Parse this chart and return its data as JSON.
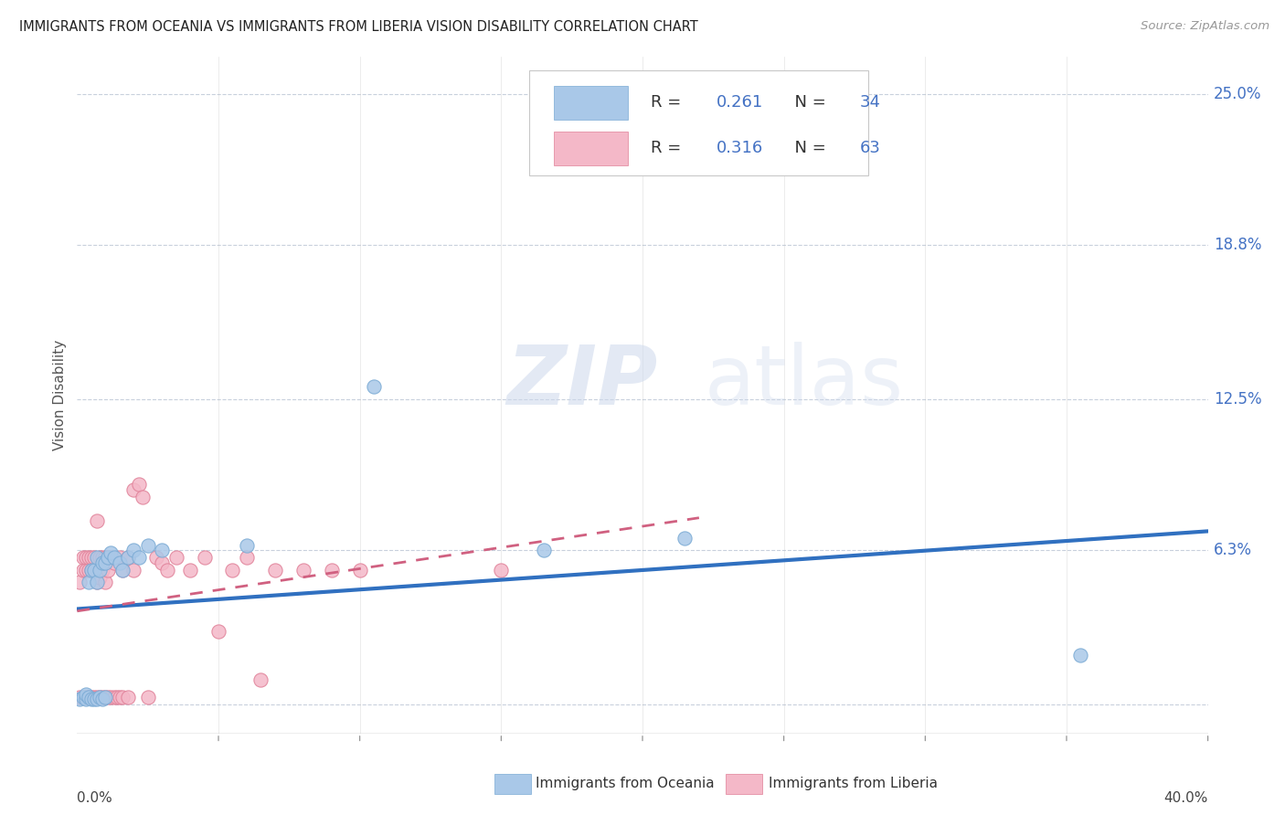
{
  "title": "IMMIGRANTS FROM OCEANIA VS IMMIGRANTS FROM LIBERIA VISION DISABILITY CORRELATION CHART",
  "source": "Source: ZipAtlas.com",
  "ylabel": "Vision Disability",
  "right_yticklabels": [
    "6.3%",
    "12.5%",
    "18.8%",
    "25.0%"
  ],
  "right_ytick_vals": [
    0.063,
    0.125,
    0.188,
    0.25
  ],
  "xmin": 0.0,
  "xmax": 0.4,
  "ymin": -0.012,
  "ymax": 0.265,
  "oceania_color": "#a9c8e8",
  "oceania_edge": "#7aaad4",
  "liberia_color": "#f4b8c8",
  "liberia_edge": "#e08098",
  "oceania_line_color": "#3070c0",
  "liberia_line_color": "#d06080",
  "legend_r1": "0.261",
  "legend_n1": "34",
  "legend_r2": "0.316",
  "legend_n2": "63",
  "oceania_x": [
    0.001,
    0.002,
    0.003,
    0.003,
    0.004,
    0.004,
    0.005,
    0.005,
    0.006,
    0.006,
    0.007,
    0.007,
    0.007,
    0.008,
    0.008,
    0.009,
    0.009,
    0.01,
    0.01,
    0.011,
    0.012,
    0.013,
    0.015,
    0.016,
    0.018,
    0.02,
    0.022,
    0.025,
    0.03,
    0.06,
    0.105,
    0.165,
    0.215,
    0.355
  ],
  "oceania_y": [
    0.002,
    0.003,
    0.002,
    0.004,
    0.003,
    0.05,
    0.002,
    0.055,
    0.002,
    0.055,
    0.002,
    0.05,
    0.06,
    0.003,
    0.055,
    0.002,
    0.058,
    0.003,
    0.058,
    0.06,
    0.062,
    0.06,
    0.058,
    0.055,
    0.06,
    0.063,
    0.06,
    0.065,
    0.063,
    0.065,
    0.13,
    0.063,
    0.068,
    0.02
  ],
  "liberia_x": [
    0.001,
    0.001,
    0.002,
    0.002,
    0.002,
    0.003,
    0.003,
    0.003,
    0.004,
    0.004,
    0.004,
    0.005,
    0.005,
    0.005,
    0.006,
    0.006,
    0.006,
    0.007,
    0.007,
    0.007,
    0.008,
    0.008,
    0.008,
    0.009,
    0.009,
    0.009,
    0.01,
    0.01,
    0.01,
    0.011,
    0.011,
    0.011,
    0.012,
    0.012,
    0.013,
    0.013,
    0.014,
    0.015,
    0.015,
    0.016,
    0.016,
    0.018,
    0.018,
    0.02,
    0.02,
    0.022,
    0.023,
    0.025,
    0.028,
    0.03,
    0.032,
    0.035,
    0.04,
    0.045,
    0.05,
    0.055,
    0.06,
    0.065,
    0.07,
    0.08,
    0.09,
    0.1,
    0.15
  ],
  "liberia_y": [
    0.003,
    0.05,
    0.003,
    0.055,
    0.06,
    0.003,
    0.055,
    0.06,
    0.003,
    0.055,
    0.06,
    0.003,
    0.055,
    0.06,
    0.003,
    0.055,
    0.06,
    0.003,
    0.05,
    0.075,
    0.003,
    0.052,
    0.06,
    0.003,
    0.055,
    0.06,
    0.003,
    0.05,
    0.06,
    0.003,
    0.055,
    0.06,
    0.003,
    0.06,
    0.003,
    0.058,
    0.003,
    0.003,
    0.06,
    0.003,
    0.055,
    0.003,
    0.06,
    0.055,
    0.088,
    0.09,
    0.085,
    0.003,
    0.06,
    0.058,
    0.055,
    0.06,
    0.055,
    0.06,
    0.03,
    0.055,
    0.06,
    0.01,
    0.055,
    0.055,
    0.055,
    0.055,
    0.055
  ],
  "watermark_zip": "ZIP",
  "watermark_atlas": "atlas",
  "background_color": "#ffffff",
  "grid_color": "#c8d0dc",
  "label_color": "#4472c4",
  "text_dark": "#333333"
}
